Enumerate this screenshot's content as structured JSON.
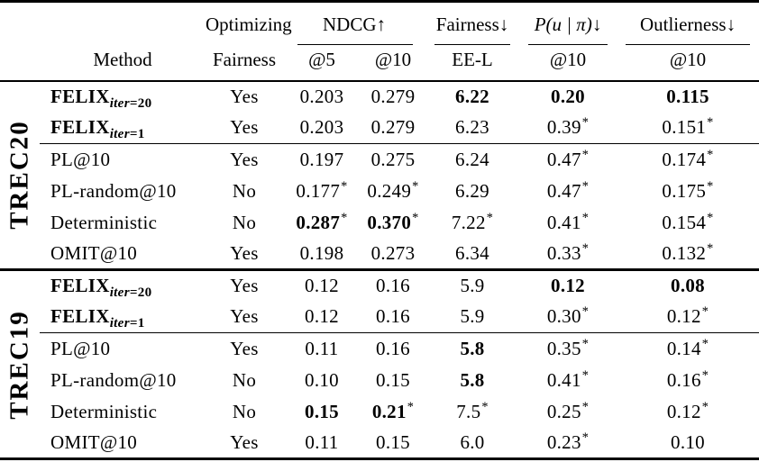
{
  "star_symbol": "*",
  "header": {
    "method": "Method",
    "optimizing_top": "Optimizing",
    "optimizing_bottom": "Fairness",
    "ndcg_title": "NDCG",
    "ndcg_arrow": "↑",
    "ndcg_at5": "@5",
    "ndcg_at10": "@10",
    "fairness_title": "Fairness",
    "fairness_arrow": "↓",
    "fairness_sub": "EE-L",
    "prob_title": "P(u | π)",
    "prob_arrow": "↓",
    "prob_sub": "@10",
    "outlierness_title": "Outlierness",
    "outlierness_arrow": "↓",
    "outlierness_sub": "@10"
  },
  "groups": [
    {
      "label": "TREC20",
      "rows": [
        {
          "method": {
            "base": "FELIX",
            "sub_it": "iter",
            "sub_rest": "=20",
            "bold": true
          },
          "opt": "Yes",
          "cells": [
            {
              "v": "0.203"
            },
            {
              "v": "0.279"
            },
            {
              "v": "6.22",
              "b": true
            },
            {
              "v": "0.20",
              "b": true
            },
            {
              "v": "0.115",
              "b": true
            }
          ]
        },
        {
          "method": {
            "base": "FELIX",
            "sub_it": "iter",
            "sub_rest": "=1",
            "bold": true
          },
          "opt": "Yes",
          "cells": [
            {
              "v": "0.203"
            },
            {
              "v": "0.279"
            },
            {
              "v": "6.23"
            },
            {
              "v": "0.39",
              "s": true
            },
            {
              "v": "0.151",
              "s": true
            }
          ]
        },
        {
          "method": {
            "base": "PL@10"
          },
          "opt": "Yes",
          "divider": true,
          "cells": [
            {
              "v": "0.197"
            },
            {
              "v": "0.275"
            },
            {
              "v": "6.24"
            },
            {
              "v": "0.47",
              "s": true
            },
            {
              "v": "0.174",
              "s": true
            }
          ]
        },
        {
          "method": {
            "base": "PL-random@10"
          },
          "opt": "No",
          "cells": [
            {
              "v": "0.177",
              "s": true
            },
            {
              "v": "0.249",
              "s": true
            },
            {
              "v": "6.29"
            },
            {
              "v": "0.47",
              "s": true
            },
            {
              "v": "0.175",
              "s": true
            }
          ]
        },
        {
          "method": {
            "base": "Deterministic"
          },
          "opt": "No",
          "cells": [
            {
              "v": "0.287",
              "b": true,
              "s": true
            },
            {
              "v": "0.370",
              "b": true,
              "s": true
            },
            {
              "v": "7.22",
              "s": true
            },
            {
              "v": "0.41",
              "s": true
            },
            {
              "v": "0.154",
              "s": true
            }
          ]
        },
        {
          "method": {
            "base": "OMIT@10"
          },
          "opt": "Yes",
          "cells": [
            {
              "v": "0.198"
            },
            {
              "v": "0.273"
            },
            {
              "v": "6.34"
            },
            {
              "v": "0.33",
              "s": true
            },
            {
              "v": "0.132",
              "s": true
            }
          ]
        }
      ]
    },
    {
      "label": "TREC19",
      "rows": [
        {
          "method": {
            "base": "FELIX",
            "sub_it": "iter",
            "sub_rest": "=20",
            "bold": true
          },
          "opt": "Yes",
          "cells": [
            {
              "v": "0.12"
            },
            {
              "v": "0.16"
            },
            {
              "v": "5.9"
            },
            {
              "v": "0.12",
              "b": true
            },
            {
              "v": "0.08",
              "b": true
            }
          ]
        },
        {
          "method": {
            "base": "FELIX",
            "sub_it": "iter",
            "sub_rest": "=1",
            "bold": true
          },
          "opt": "Yes",
          "cells": [
            {
              "v": "0.12"
            },
            {
              "v": "0.16"
            },
            {
              "v": "5.9"
            },
            {
              "v": "0.30",
              "s": true
            },
            {
              "v": "0.12",
              "s": true
            }
          ]
        },
        {
          "method": {
            "base": "PL@10"
          },
          "opt": "Yes",
          "divider": true,
          "cells": [
            {
              "v": "0.11"
            },
            {
              "v": "0.16"
            },
            {
              "v": "5.8",
              "b": true
            },
            {
              "v": "0.35",
              "s": true
            },
            {
              "v": "0.14",
              "s": true
            }
          ]
        },
        {
          "method": {
            "base": "PL-random@10"
          },
          "opt": "No",
          "cells": [
            {
              "v": "0.10"
            },
            {
              "v": "0.15"
            },
            {
              "v": "5.8",
              "b": true
            },
            {
              "v": "0.41",
              "s": true
            },
            {
              "v": "0.16",
              "s": true
            }
          ]
        },
        {
          "method": {
            "base": "Deterministic"
          },
          "opt": "No",
          "cells": [
            {
              "v": "0.15",
              "b": true
            },
            {
              "v": "0.21",
              "b": true,
              "s": true
            },
            {
              "v": "7.5",
              "s": true
            },
            {
              "v": "0.25",
              "s": true
            },
            {
              "v": "0.12",
              "s": true
            }
          ]
        },
        {
          "method": {
            "base": "OMIT@10"
          },
          "opt": "Yes",
          "cells": [
            {
              "v": "0.11"
            },
            {
              "v": "0.15"
            },
            {
              "v": "6.0"
            },
            {
              "v": "0.23",
              "s": true
            },
            {
              "v": "0.10"
            }
          ]
        }
      ]
    }
  ]
}
